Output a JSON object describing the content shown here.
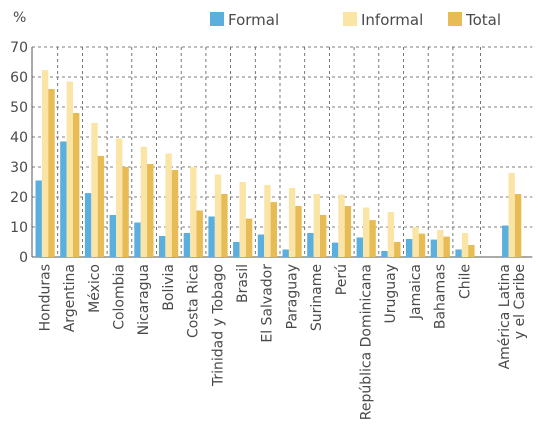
{
  "chart_data": {
    "type": "bar",
    "ylabel": "%",
    "ylim": [
      0,
      70
    ],
    "yticks": [
      0,
      10,
      20,
      30,
      40,
      50,
      60,
      70
    ],
    "grid": true,
    "legend_position": "top-right",
    "categories": [
      "Honduras",
      "Argentina",
      "México",
      "Colombia",
      "Nicaragua",
      "Bolivia",
      "Costa Rica",
      "Trinidad y Tobago",
      "Brasil",
      "El Salvador",
      "Paraguay",
      "Suriname",
      "Perú",
      "República Dominicana",
      "Uruguay",
      "Jamaica",
      "Bahamas",
      "Chile",
      "América Latina\ny el Caribe"
    ],
    "series": [
      {
        "name": "Formal",
        "color": "#5aafdf",
        "values": [
          25.5,
          38.5,
          21.3,
          14.0,
          11.5,
          7.0,
          8.0,
          13.5,
          5.0,
          7.5,
          2.5,
          8.0,
          4.8,
          6.5,
          2.0,
          6.0,
          5.8,
          2.5,
          10.5
        ]
      },
      {
        "name": "Informal",
        "color": "#fbe5a6",
        "values": [
          62.3,
          58.5,
          44.7,
          39.5,
          36.8,
          34.5,
          30.0,
          27.5,
          25.0,
          24.0,
          23.0,
          21.0,
          20.8,
          16.5,
          15.0,
          10.0,
          9.0,
          8.0,
          28.0
        ]
      },
      {
        "name": "Total",
        "color": "#e7bc55",
        "values": [
          56.0,
          48.0,
          33.7,
          30.0,
          31.0,
          29.0,
          15.5,
          21.0,
          12.8,
          18.3,
          17.0,
          14.0,
          17.0,
          12.3,
          5.0,
          7.8,
          6.8,
          4.0,
          21.0
        ]
      }
    ]
  }
}
